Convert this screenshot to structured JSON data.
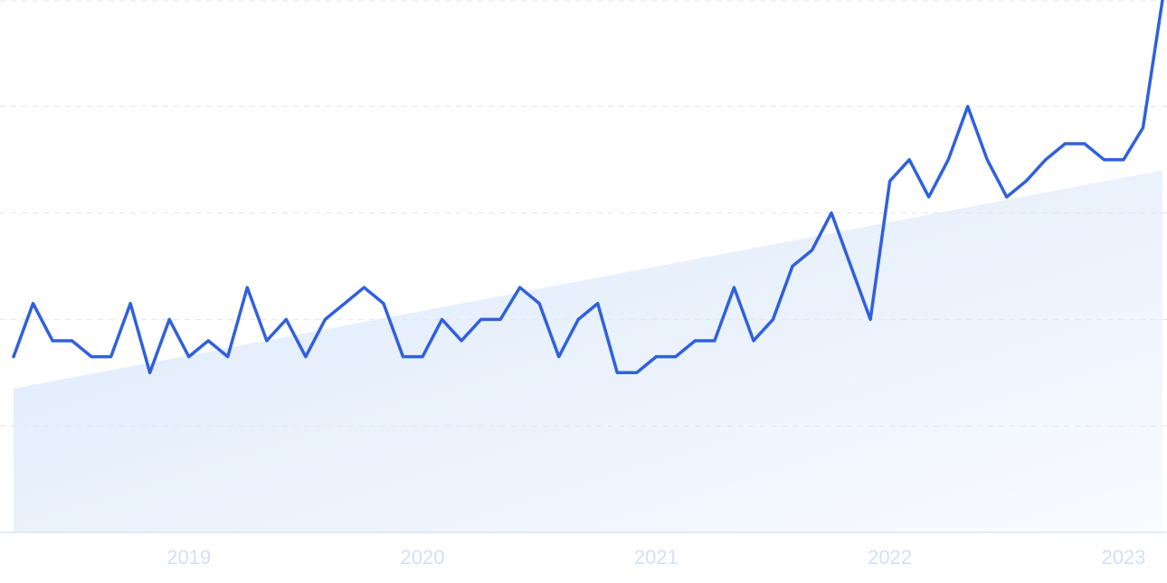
{
  "chart_data": {
    "type": "line",
    "categories": [
      null,
      null,
      null,
      null,
      null,
      null,
      null,
      null,
      null,
      "2019",
      null,
      null,
      null,
      null,
      null,
      null,
      null,
      null,
      null,
      null,
      null,
      "2020",
      null,
      null,
      null,
      null,
      null,
      null,
      null,
      null,
      null,
      null,
      null,
      "2021",
      null,
      null,
      null,
      null,
      null,
      null,
      null,
      null,
      null,
      null,
      null,
      "2022",
      null,
      null,
      null,
      null,
      null,
      null,
      null,
      null,
      null,
      null,
      null,
      "2023",
      null,
      null
    ],
    "values": [
      33,
      43,
      36,
      36,
      33,
      33,
      43,
      30,
      40,
      33,
      36,
      33,
      46,
      36,
      40,
      33,
      40,
      43,
      46,
      43,
      33,
      33,
      40,
      36,
      40,
      40,
      46,
      43,
      33,
      40,
      43,
      30,
      30,
      33,
      33,
      36,
      36,
      46,
      36,
      40,
      50,
      53,
      60,
      50,
      40,
      66,
      70,
      63,
      70,
      80,
      70,
      63,
      66,
      70,
      73,
      73,
      70,
      70,
      76,
      100
    ],
    "color": "#3060dc",
    "trend_values": [
      27,
      68
    ],
    "ylim": [
      0,
      100
    ],
    "yticks": [
      0,
      20,
      40,
      60,
      80,
      100
    ],
    "grid": true
  }
}
